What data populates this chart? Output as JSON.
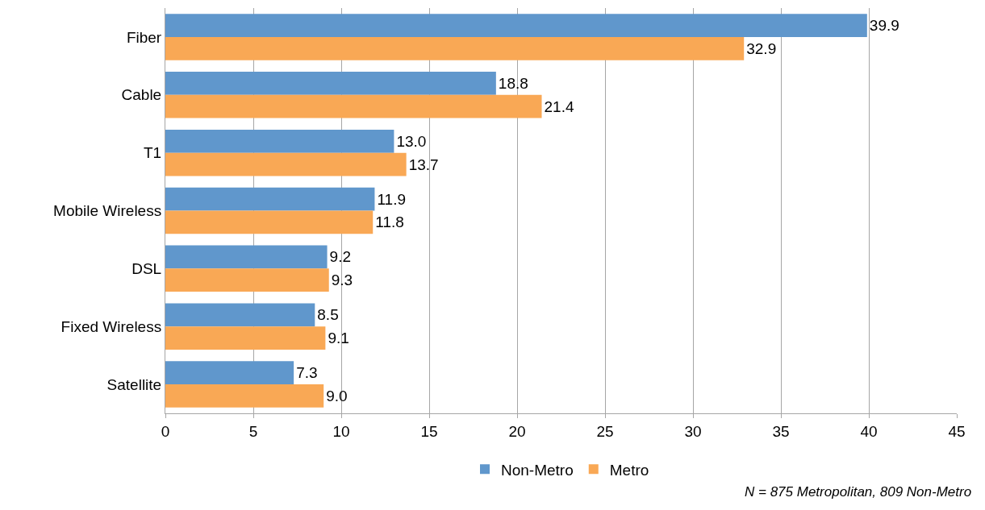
{
  "chart_data": {
    "type": "bar",
    "orientation": "horizontal",
    "categories": [
      "Fiber",
      "Cable",
      "T1",
      "Mobile Wireless",
      "DSL",
      "Fixed Wireless",
      "Satellite"
    ],
    "series": [
      {
        "name": "Non-Metro",
        "color": "#6097cc",
        "values": [
          39.9,
          18.8,
          13.0,
          11.9,
          9.2,
          8.5,
          7.3
        ],
        "value_labels": [
          "39.9",
          "18.8",
          "13.0",
          "11.9",
          "9.2",
          "8.5",
          "7.3"
        ]
      },
      {
        "name": "Metro",
        "color": "#f9a855",
        "values": [
          32.9,
          21.4,
          13.7,
          11.8,
          9.3,
          9.1,
          9.0
        ],
        "value_labels": [
          "32.9",
          "21.4",
          "13.7",
          "11.8",
          "9.3",
          "9.1",
          "9.0"
        ]
      }
    ],
    "xlim": [
      0,
      45
    ],
    "xticks": [
      0,
      5,
      10,
      15,
      20,
      25,
      30,
      35,
      40,
      45
    ],
    "grid": "x",
    "legend": "bottom",
    "annotations": [
      "N = 875 Metropolitan, 809 Non-Metro"
    ]
  }
}
